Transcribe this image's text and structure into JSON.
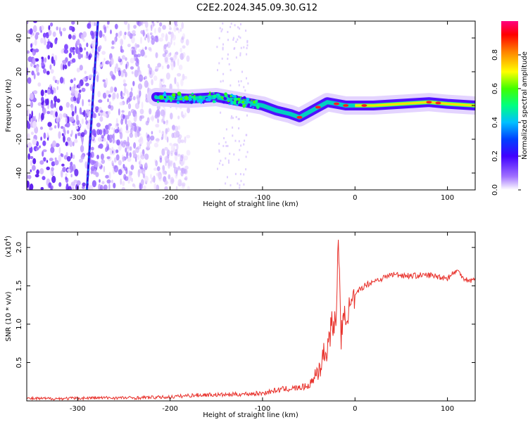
{
  "title": "C2E2.2024.345.09.30.G12",
  "chart_data": [
    {
      "type": "heatmap",
      "xlabel": "Height of straight line (km)",
      "ylabel": "Frequency (Hz)",
      "xlim": [
        -355,
        130
      ],
      "ylim": [
        -50,
        50
      ],
      "x_ticks": [
        -300,
        -200,
        -100,
        0,
        100
      ],
      "y_ticks": [
        -40,
        -20,
        0,
        20,
        40
      ],
      "colorbar": {
        "label": "Normalized spectral amplitude",
        "range": [
          0,
          1
        ],
        "ticks": [
          "0.0",
          "0.2",
          "0.4",
          "0.6",
          "0.8"
        ],
        "tick_values": [
          0.0,
          0.2,
          0.4,
          0.6,
          0.8
        ],
        "colors": [
          "#ffffff",
          "#a070ff",
          "#4000ff",
          "#0040ff",
          "#00c0ff",
          "#00ff80",
          "#40ff00",
          "#ffff00",
          "#ff8000",
          "#ff0000",
          "#ff0080"
        ]
      },
      "ridge_track": {
        "x": [
          -215,
          -180,
          -150,
          -120,
          -100,
          -85,
          -70,
          -60,
          -50,
          -40,
          -30,
          -20,
          -10,
          0,
          20,
          50,
          80,
          100,
          130
        ],
        "y": [
          5,
          4,
          5,
          2,
          0,
          -3,
          -5,
          -7,
          -4,
          -1,
          2,
          1,
          0,
          0,
          0,
          1,
          2,
          1,
          0
        ]
      },
      "vertical_feature": {
        "x": [
          -290,
          -278
        ],
        "y": [
          -50,
          50
        ]
      }
    },
    {
      "type": "line",
      "xlabel": "Height of straight line (km)",
      "ylabel": "SNR (10 * v/v)",
      "yscale_label": "(x10",
      "yscale_exp": "4",
      "xlim": [
        -355,
        130
      ],
      "ylim": [
        0,
        2.2
      ],
      "x_ticks": [
        -300,
        -200,
        -100,
        0,
        100
      ],
      "y_ticks": [
        0.5,
        1.0,
        1.5,
        2.0
      ],
      "y_tick_labels": [
        "0.5",
        "1.0",
        "1.5",
        "2.0"
      ],
      "series": [
        {
          "color": "#e8302a",
          "x": [
            -355,
            -320,
            -280,
            -240,
            -200,
            -180,
            -160,
            -140,
            -120,
            -100,
            -80,
            -60,
            -50,
            -45,
            -40,
            -35,
            -30,
            -25,
            -20,
            -18,
            -15,
            -10,
            -5,
            0,
            5,
            10,
            20,
            30,
            40,
            60,
            80,
            100,
            110,
            120,
            130
          ],
          "y": [
            0.03,
            0.03,
            0.04,
            0.04,
            0.05,
            0.07,
            0.08,
            0.08,
            0.09,
            0.1,
            0.15,
            0.17,
            0.2,
            0.28,
            0.4,
            0.55,
            0.7,
            1.0,
            1.05,
            2.2,
            0.85,
            1.15,
            1.2,
            1.35,
            1.45,
            1.5,
            1.56,
            1.6,
            1.65,
            1.63,
            1.64,
            1.6,
            1.7,
            1.58,
            1.57
          ]
        }
      ]
    }
  ]
}
